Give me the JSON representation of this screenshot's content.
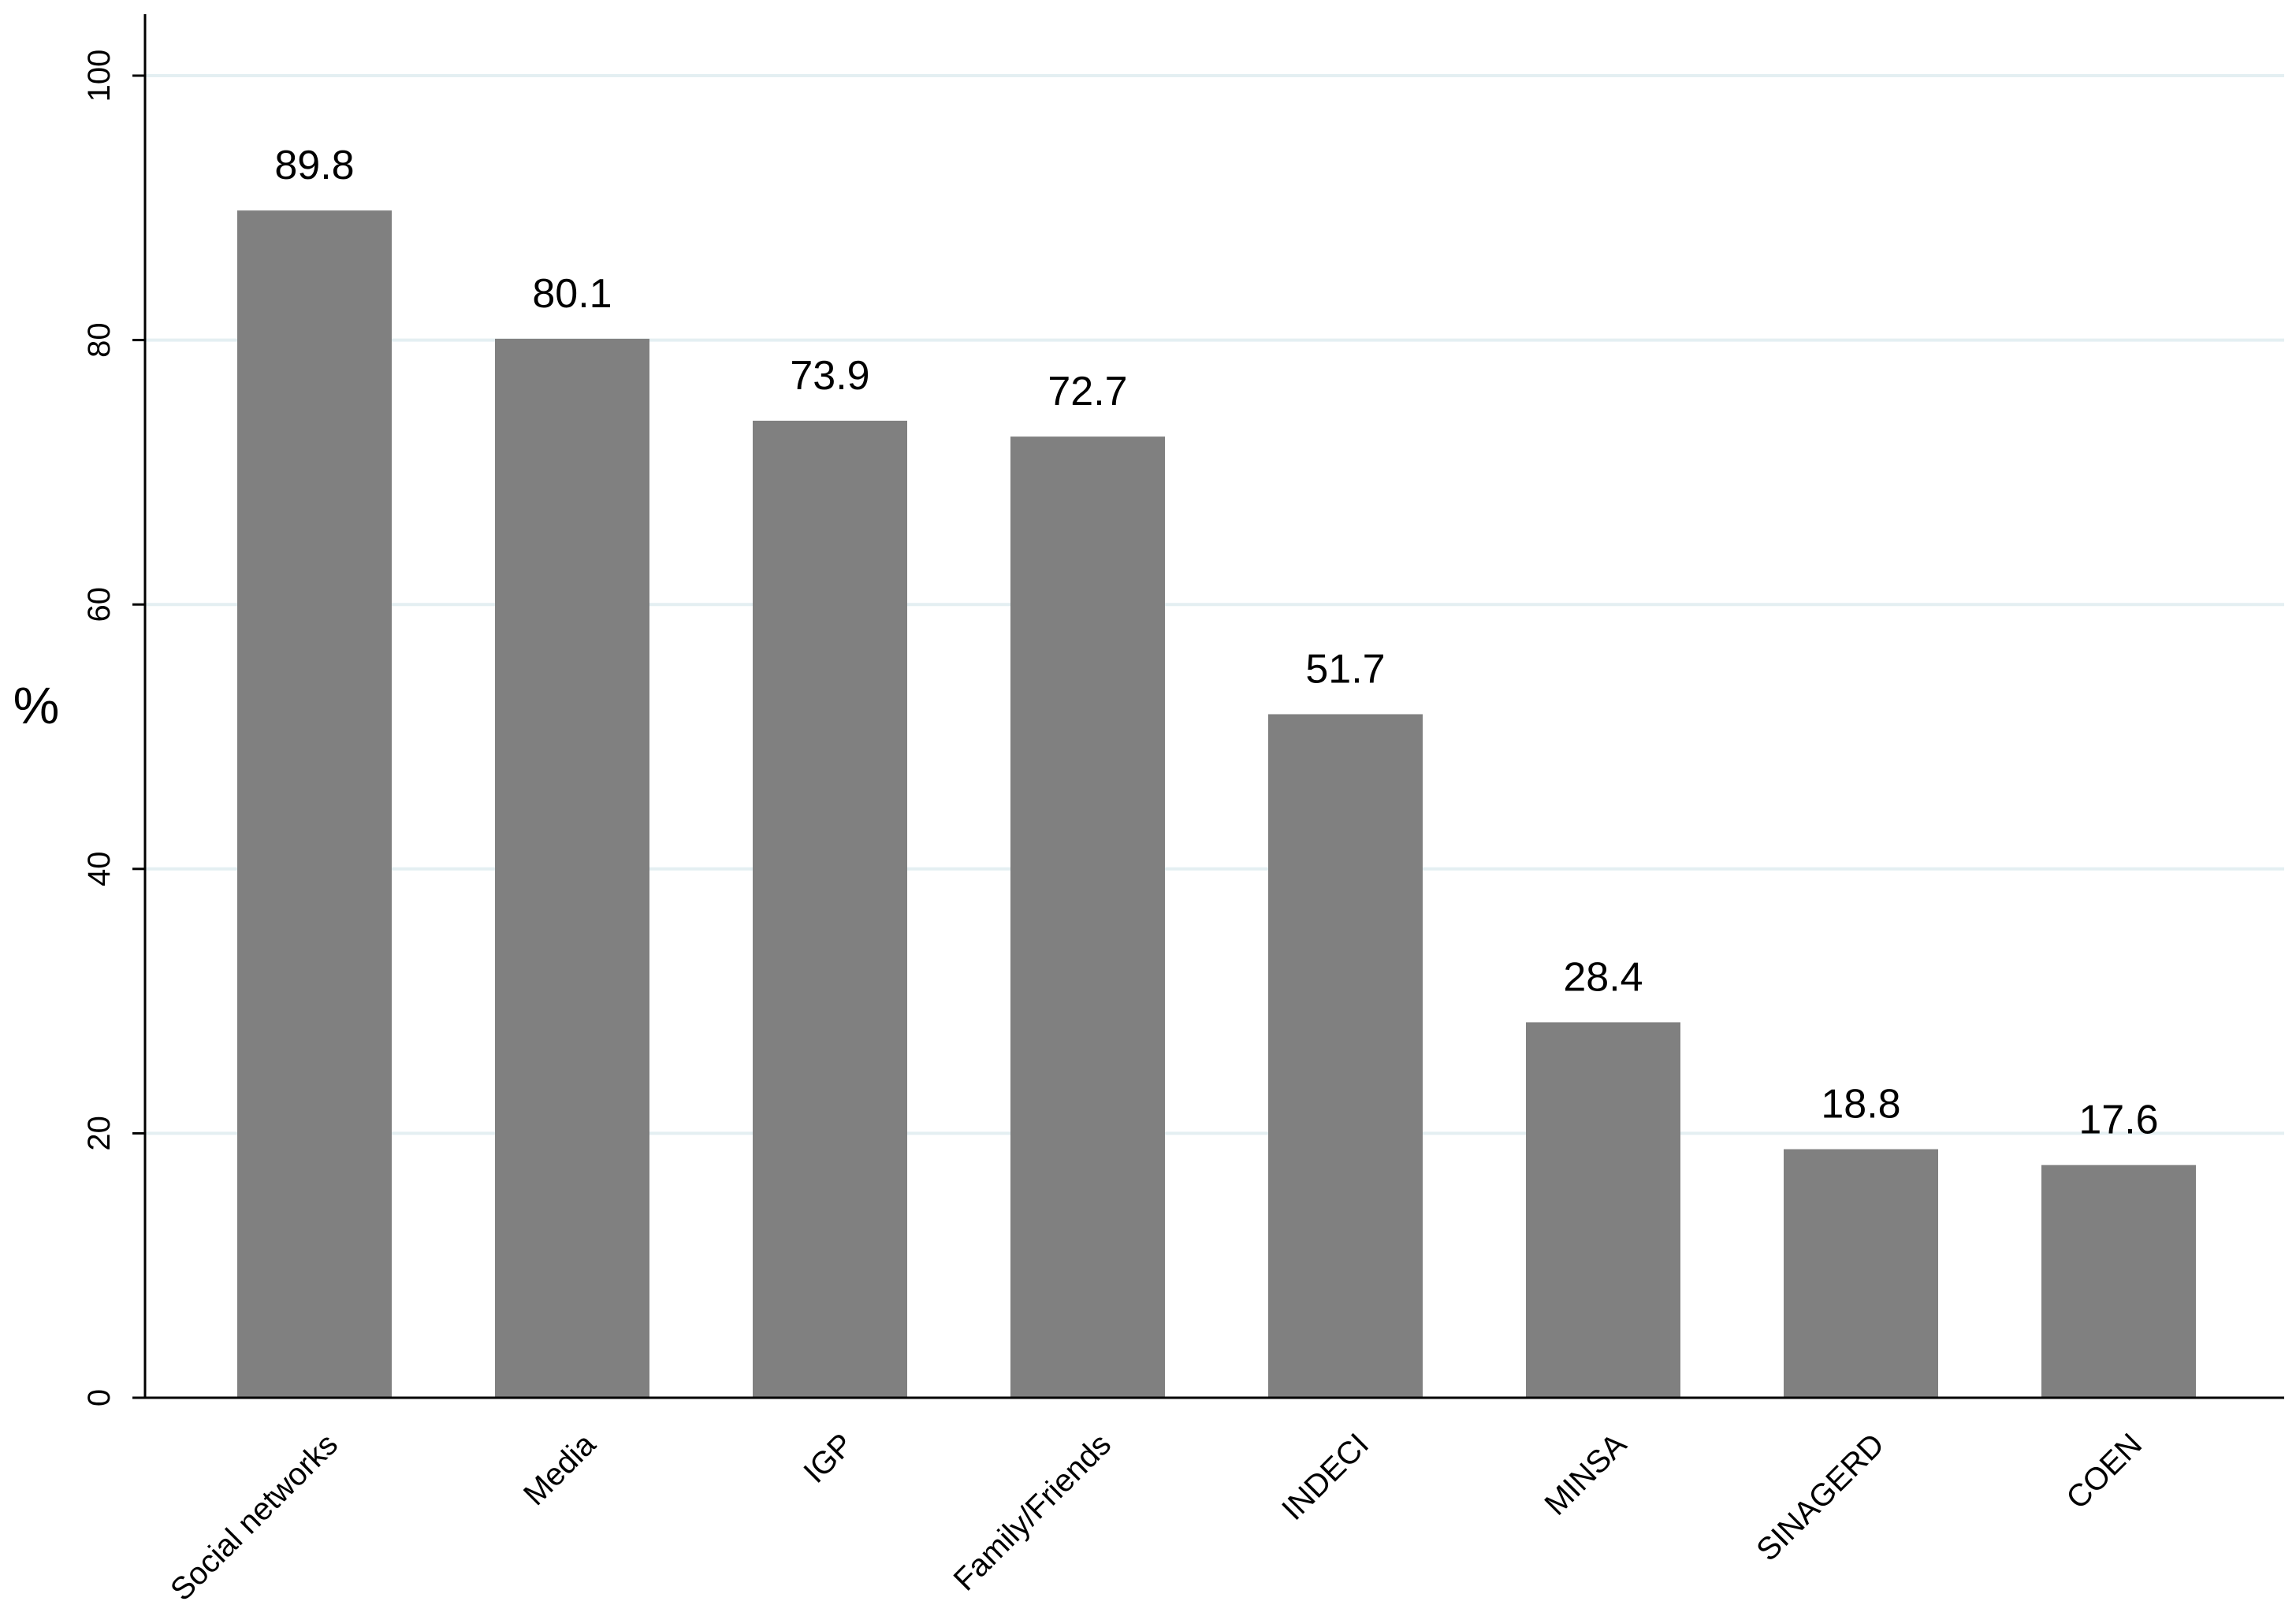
{
  "chart_data": {
    "type": "bar",
    "title": "",
    "xlabel": "",
    "ylabel": "%",
    "ylim": [
      0,
      100
    ],
    "yticks": [
      "0",
      "20",
      "40",
      "60",
      "80",
      "100"
    ],
    "grid": true,
    "categories": [
      "Social networks",
      "Media",
      "IGP",
      "Family/Friends",
      "INDECI",
      "MINSA",
      "SINAGERD",
      "COEN"
    ],
    "values": [
      89.8,
      80.1,
      73.9,
      72.7,
      51.7,
      28.4,
      18.8,
      17.6
    ],
    "value_labels": [
      "89.8",
      "80.1",
      "73.9",
      "72.7",
      "51.7",
      "28.4",
      "18.8",
      "17.6"
    ]
  },
  "colors": {
    "bar": "#808080",
    "grid": "#e4eff2",
    "axis": "#000000",
    "background": "#ffffff"
  }
}
